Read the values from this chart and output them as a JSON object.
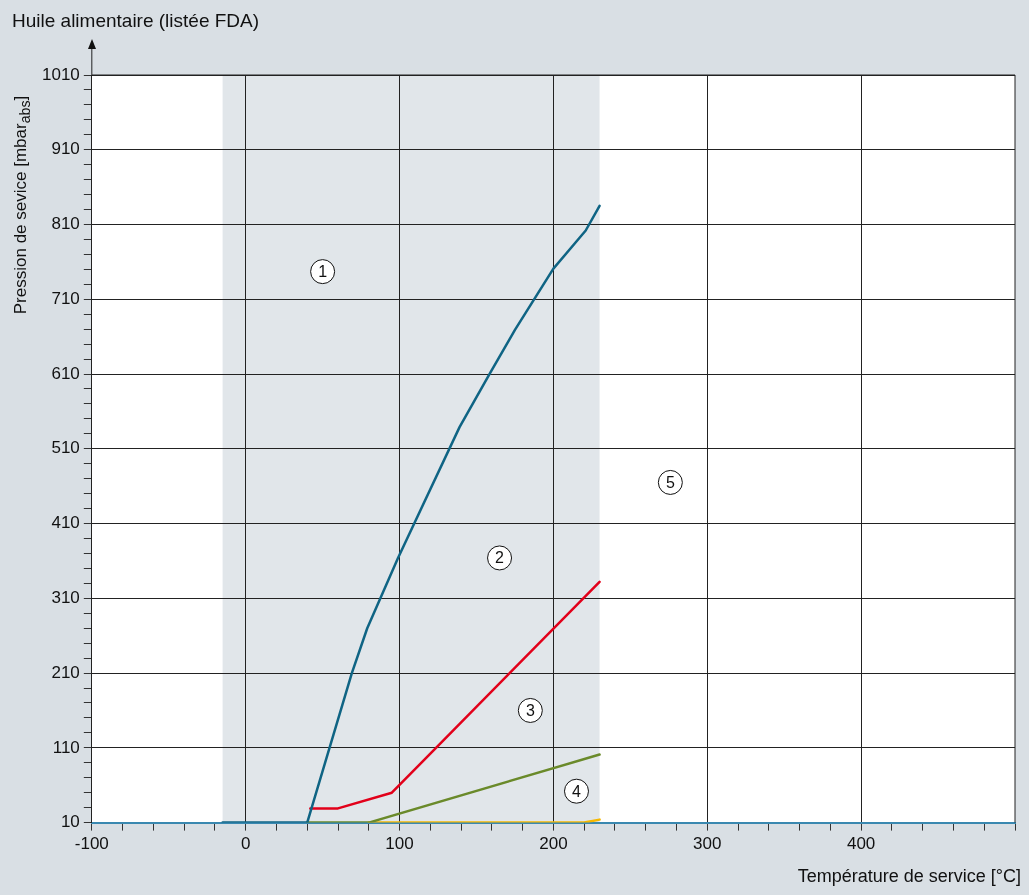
{
  "chart_data": {
    "type": "line",
    "title": "Huile alimentaire (listée FDA)",
    "xlabel": "Température de service  [°C]",
    "ylabel": "Pression de sevice [mbar$_{abs}$]",
    "xlim": [
      -100,
      500
    ],
    "ylim": [
      10,
      1010
    ],
    "xticks": [
      -100,
      {
        "value": -80,
        "label": null
      },
      {
        "value": -60,
        "label": null
      },
      {
        "value": -40,
        "label": null
      },
      {
        "value": -20,
        "label": null
      },
      0,
      {
        "value": 20,
        "label": null
      },
      {
        "value": 40,
        "label": null
      },
      {
        "value": 60,
        "label": null
      },
      {
        "value": 80,
        "label": null
      },
      100,
      {
        "value": 120,
        "label": null
      },
      {
        "value": 140,
        "label": null
      },
      {
        "value": 160,
        "label": null
      },
      {
        "value": 180,
        "label": null
      },
      200,
      {
        "value": 220,
        "label": null
      },
      {
        "value": 240,
        "label": null
      },
      {
        "value": 260,
        "label": null
      },
      {
        "value": 280,
        "label": null
      },
      300,
      {
        "value": 320,
        "label": null
      },
      {
        "value": 340,
        "label": null
      },
      {
        "value": 360,
        "label": null
      },
      {
        "value": 380,
        "label": null
      },
      400,
      {
        "value": 420,
        "label": null
      },
      {
        "value": 440,
        "label": null
      },
      {
        "value": 460,
        "label": null
      },
      {
        "value": 480,
        "label": null
      },
      {
        "value": 500,
        "label": null
      }
    ],
    "yticks": [
      10,
      {
        "value": 30,
        "label": null
      },
      {
        "value": 50,
        "label": null
      },
      {
        "value": 70,
        "label": null
      },
      {
        "value": 90,
        "label": null
      },
      110,
      {
        "value": 130,
        "label": null
      },
      {
        "value": 150,
        "label": null
      },
      {
        "value": 170,
        "label": null
      },
      {
        "value": 190,
        "label": null
      },
      210,
      {
        "value": 230,
        "label": null
      },
      {
        "value": 250,
        "label": null
      },
      {
        "value": 270,
        "label": null
      },
      {
        "value": 290,
        "label": null
      },
      310,
      {
        "value": 330,
        "label": null
      },
      {
        "value": 350,
        "label": null
      },
      {
        "value": 370,
        "label": null
      },
      {
        "value": 390,
        "label": null
      },
      410,
      {
        "value": 430,
        "label": null
      },
      {
        "value": 450,
        "label": null
      },
      {
        "value": 470,
        "label": null
      },
      {
        "value": 490,
        "label": null
      },
      510,
      {
        "value": 530,
        "label": null
      },
      {
        "value": 550,
        "label": null
      },
      {
        "value": 570,
        "label": null
      },
      {
        "value": 590,
        "label": null
      },
      610,
      {
        "value": 630,
        "label": null
      },
      {
        "value": 650,
        "label": null
      },
      {
        "value": 670,
        "label": null
      },
      {
        "value": 690,
        "label": null
      },
      710,
      {
        "value": 730,
        "label": null
      },
      {
        "value": 750,
        "label": null
      },
      {
        "value": 770,
        "label": null
      },
      {
        "value": 790,
        "label": null
      },
      810,
      {
        "value": 830,
        "label": null
      },
      {
        "value": 850,
        "label": null
      },
      {
        "value": 870,
        "label": null
      },
      {
        "value": 890,
        "label": null
      },
      910,
      {
        "value": 930,
        "label": null
      },
      {
        "value": 950,
        "label": null
      },
      {
        "value": 970,
        "label": null
      },
      {
        "value": 990,
        "label": null
      },
      1010
    ],
    "grid": true,
    "legend": false,
    "bands": [
      {
        "axis": "x",
        "from": -15,
        "to": 230,
        "color": "#e1e6ea"
      }
    ],
    "series": [
      {
        "color": "#0f6484",
        "x": [
          -15,
          40,
          69,
          79,
          99,
          139,
          159,
          175,
          200,
          221,
          230
        ],
        "values": [
          10,
          10,
          210,
          270,
          364,
          539,
          612,
          669,
          751,
          802,
          835
        ]
      },
      {
        "color": "#e2001a",
        "x": [
          42,
          60,
          95,
          230
        ],
        "values": [
          29,
          29,
          50,
          332
        ]
      },
      {
        "color": "#6a8a2a",
        "x": [
          40,
          80,
          230
        ],
        "values": [
          10,
          10,
          101
        ]
      },
      {
        "color": "#f5b800",
        "x": [
          80,
          220,
          230
        ],
        "values": [
          10,
          10,
          14
        ]
      }
    ],
    "annotations": [
      {
        "text": "1",
        "x": 50,
        "y": 747
      },
      {
        "text": "2",
        "x": 165,
        "y": 364
      },
      {
        "text": "3",
        "x": 185,
        "y": 160
      },
      {
        "text": "4",
        "x": 215,
        "y": 52
      },
      {
        "text": "5",
        "x": 276,
        "y": 465
      }
    ]
  }
}
